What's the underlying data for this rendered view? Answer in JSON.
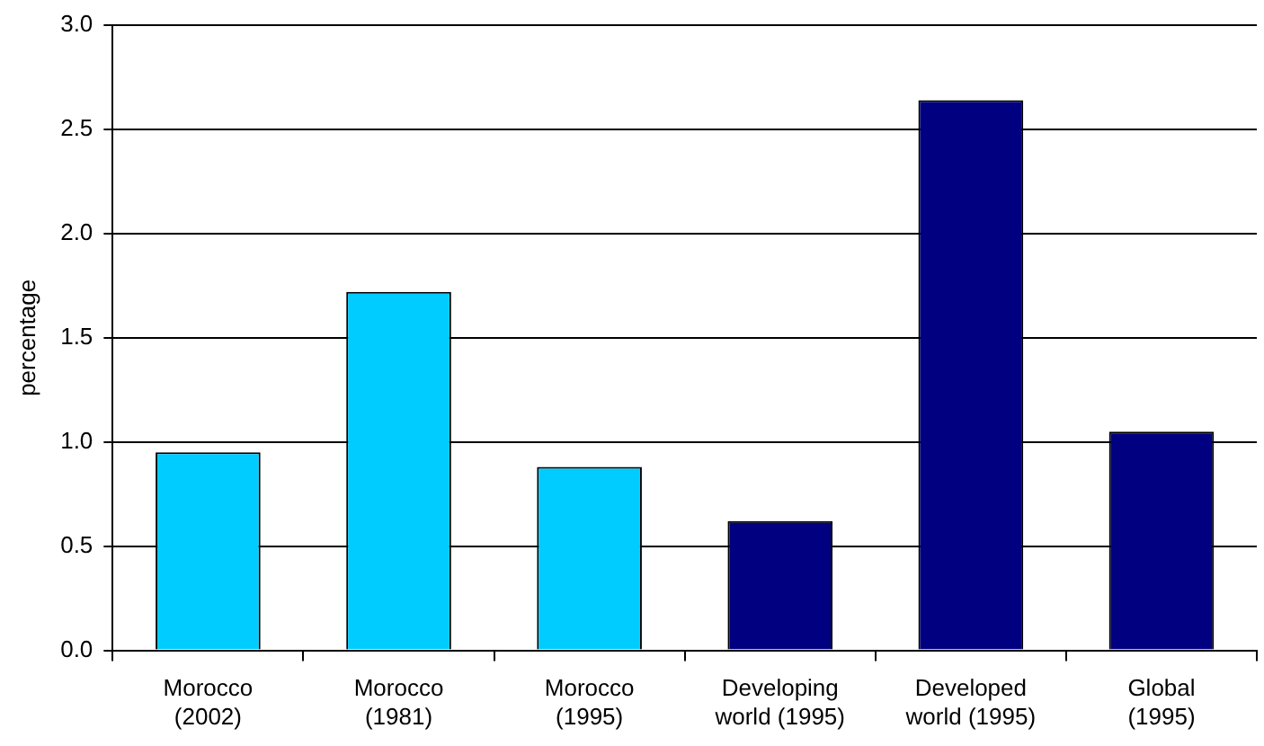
{
  "chart_data": {
    "type": "bar",
    "ylabel": "percentage",
    "categories": [
      "Morocco (2002)",
      "Morocco (1981)",
      "Morocco (1995)",
      "Developing world (1995)",
      "Developed world (1995)",
      "Global (1995)"
    ],
    "values": [
      0.95,
      1.72,
      0.88,
      0.62,
      2.64,
      1.05
    ],
    "colors": [
      "#00ccff",
      "#00ccff",
      "#00ccff",
      "#000080",
      "#000080",
      "#000080"
    ],
    "ylim": [
      0,
      3
    ],
    "yticks": [
      {
        "value": 0,
        "label": "0.0"
      },
      {
        "value": 0.5,
        "label": "0.5"
      },
      {
        "value": 1,
        "label": "1.0"
      },
      {
        "value": 1.5,
        "label": "1.5"
      },
      {
        "value": 2,
        "label": "2.0"
      },
      {
        "value": 2.5,
        "label": "2.5"
      },
      {
        "value": 3,
        "label": "3.0"
      }
    ],
    "grid": "y"
  }
}
